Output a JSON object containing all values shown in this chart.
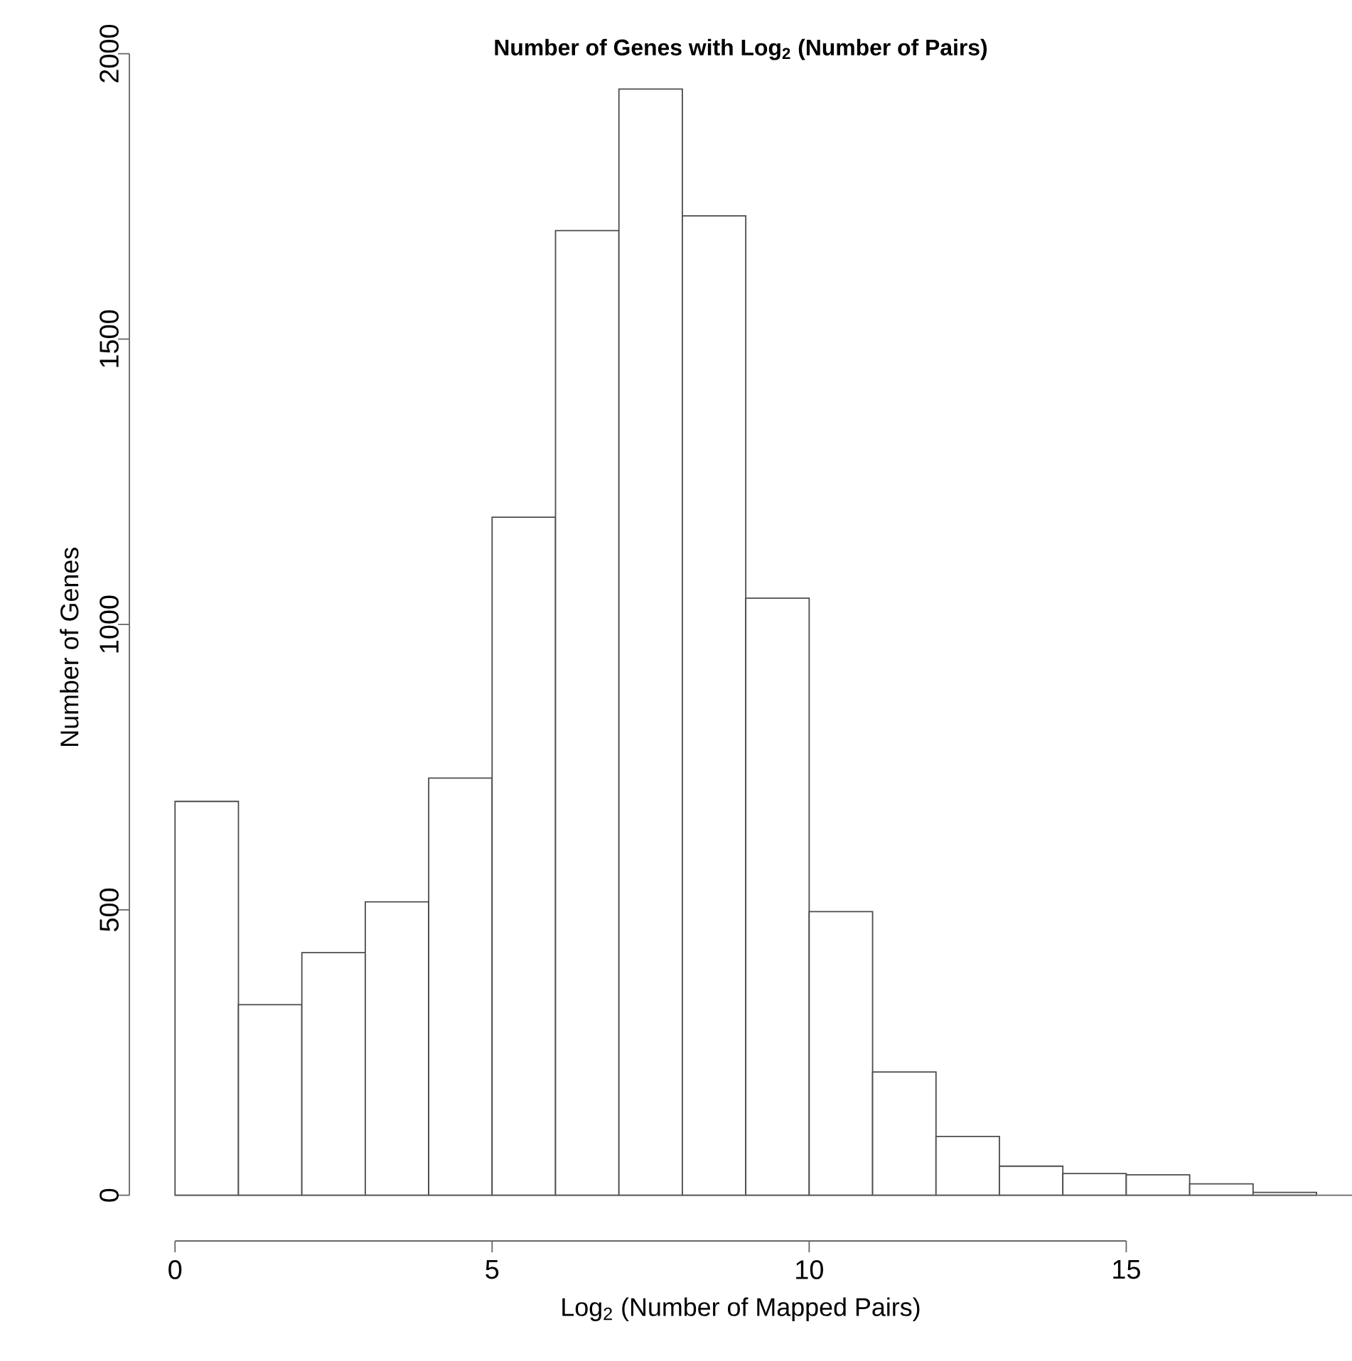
{
  "chart_data": {
    "type": "histogram",
    "title": "Number of Genes with Log$_{2}$ (Number of Pairs)",
    "xlabel": "Log$_{2}$ (Number of Mapped Pairs)",
    "ylabel": "Number of Genes",
    "bins": [
      0,
      1,
      2,
      3,
      4,
      5,
      6,
      7,
      8,
      9,
      10,
      11,
      12,
      13,
      14,
      15,
      16,
      17,
      18
    ],
    "values": [
      690,
      334,
      425,
      514,
      731,
      1188,
      1690,
      1938,
      1716,
      1046,
      497,
      216,
      103,
      51,
      38,
      36,
      20,
      5
    ],
    "color": "#ffffff",
    "xlim": [
      -0.72,
      18.56
    ],
    "ylim": [
      -80,
      2000
    ],
    "xticks": [
      0,
      5,
      10,
      15
    ],
    "yticks": [
      0,
      500,
      1000,
      1500,
      2000
    ]
  }
}
